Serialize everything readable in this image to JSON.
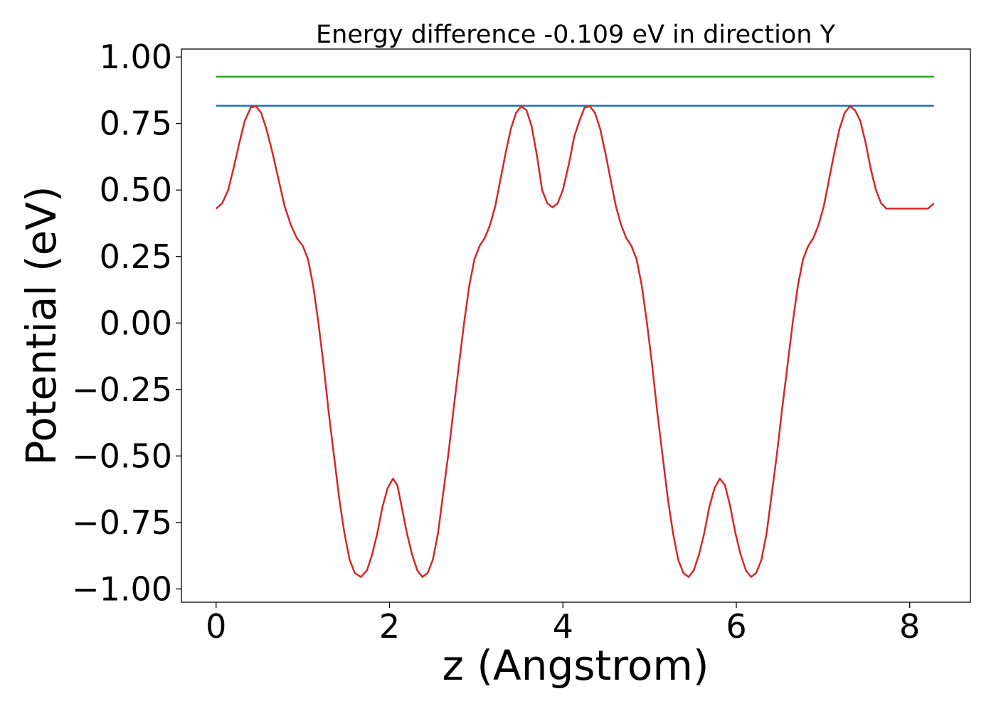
{
  "chart_data": {
    "type": "line",
    "title": "Energy difference -0.109 eV in direction Y",
    "xlabel": "z (Angstrom)",
    "ylabel": "Potential (eV)",
    "xlim": [
      -0.4,
      8.7
    ],
    "ylim": [
      -1.05,
      1.03
    ],
    "grid": false,
    "x_ticks": [
      0,
      2,
      4,
      6,
      8
    ],
    "x_tick_labels": [
      "0",
      "2",
      "4",
      "6",
      "8"
    ],
    "y_ticks": [
      1.0,
      0.75,
      0.5,
      0.25,
      0.0,
      -0.25,
      -0.5,
      -0.75,
      -1.0
    ],
    "y_tick_labels": [
      "1.00",
      "0.75",
      "0.50",
      "0.25",
      "0.00",
      "−0.25",
      "−0.50",
      "−0.75",
      "−1.00"
    ],
    "series": [
      {
        "color": "#2ca02c",
        "x": [
          0,
          8.28
        ],
        "y": [
          0.926,
          0.926
        ]
      },
      {
        "color": "#1f77b4",
        "x": [
          0,
          8.28
        ],
        "y": [
          0.817,
          0.817
        ]
      },
      {
        "color": "#d62728",
        "x": [
          0.0,
          0.07,
          0.14,
          0.2,
          0.27,
          0.33,
          0.4,
          0.46,
          0.52,
          0.58,
          0.65,
          0.72,
          0.79,
          0.86,
          0.93,
          1.0,
          1.06,
          1.12,
          1.18,
          1.24,
          1.3,
          1.36,
          1.42,
          1.48,
          1.54,
          1.6,
          1.67,
          1.74,
          1.8,
          1.86,
          1.92,
          1.98,
          2.04,
          2.09,
          2.14,
          2.2,
          2.26,
          2.32,
          2.38,
          2.44,
          2.5,
          2.56,
          2.62,
          2.68,
          2.74,
          2.8,
          2.86,
          2.92,
          2.98,
          3.04,
          3.1,
          3.16,
          3.22,
          3.28,
          3.34,
          3.4,
          3.46,
          3.52,
          3.58,
          3.64,
          3.7,
          3.76,
          3.82,
          3.88,
          3.94,
          4.0,
          4.07,
          4.13,
          4.19,
          4.25,
          4.31,
          4.37,
          4.43,
          4.49,
          4.55,
          4.61,
          4.67,
          4.73,
          4.79,
          4.85,
          4.91,
          4.97,
          5.03,
          5.09,
          5.15,
          5.21,
          5.27,
          5.33,
          5.39,
          5.45,
          5.51,
          5.57,
          5.63,
          5.69,
          5.75,
          5.81,
          5.87,
          5.93,
          5.99,
          6.05,
          6.11,
          6.17,
          6.23,
          6.29,
          6.35,
          6.41,
          6.47,
          6.53,
          6.59,
          6.65,
          6.71,
          6.77,
          6.83,
          6.89,
          6.95,
          7.01,
          7.07,
          7.13,
          7.19,
          7.25,
          7.31,
          7.37,
          7.43,
          7.49,
          7.55,
          7.61,
          7.67,
          7.73,
          7.79,
          7.85,
          7.91,
          7.97,
          8.03,
          8.09,
          8.15,
          8.21,
          8.28
        ],
        "y": [
          0.43,
          0.45,
          0.5,
          0.58,
          0.68,
          0.76,
          0.81,
          0.815,
          0.79,
          0.73,
          0.64,
          0.54,
          0.44,
          0.37,
          0.32,
          0.29,
          0.24,
          0.14,
          0.0,
          -0.16,
          -0.34,
          -0.5,
          -0.66,
          -0.79,
          -0.89,
          -0.94,
          -0.955,
          -0.93,
          -0.87,
          -0.79,
          -0.69,
          -0.62,
          -0.585,
          -0.61,
          -0.69,
          -0.79,
          -0.87,
          -0.93,
          -0.955,
          -0.94,
          -0.89,
          -0.79,
          -0.64,
          -0.49,
          -0.32,
          -0.16,
          0.0,
          0.14,
          0.24,
          0.29,
          0.32,
          0.37,
          0.44,
          0.54,
          0.64,
          0.73,
          0.79,
          0.815,
          0.8,
          0.74,
          0.63,
          0.5,
          0.45,
          0.435,
          0.45,
          0.5,
          0.6,
          0.7,
          0.76,
          0.81,
          0.815,
          0.79,
          0.73,
          0.64,
          0.54,
          0.44,
          0.37,
          0.32,
          0.29,
          0.24,
          0.14,
          0.0,
          -0.16,
          -0.34,
          -0.5,
          -0.66,
          -0.79,
          -0.89,
          -0.94,
          -0.955,
          -0.93,
          -0.87,
          -0.79,
          -0.69,
          -0.62,
          -0.585,
          -0.61,
          -0.69,
          -0.79,
          -0.87,
          -0.93,
          -0.955,
          -0.94,
          -0.89,
          -0.79,
          -0.64,
          -0.49,
          -0.32,
          -0.16,
          0.0,
          0.14,
          0.24,
          0.29,
          0.32,
          0.37,
          0.44,
          0.54,
          0.64,
          0.73,
          0.79,
          0.815,
          0.8,
          0.76,
          0.68,
          0.58,
          0.5,
          0.45,
          0.43,
          0.43,
          0.43,
          0.43,
          0.43,
          0.43,
          0.43,
          0.43,
          0.43,
          0.45
        ]
      }
    ]
  }
}
